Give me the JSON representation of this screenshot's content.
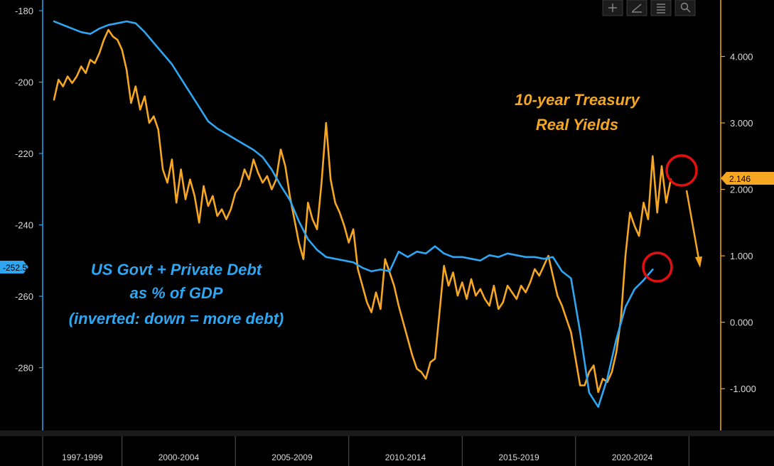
{
  "chart_data": {
    "type": "line",
    "title": "",
    "xlabel": "",
    "ylabel": "",
    "x_tick_labels": [
      "1997-1999",
      "2000-2004",
      "2005-2009",
      "2010-2014",
      "2015-2019",
      "2020-2024"
    ],
    "left_axis": {
      "ticks": [
        "-180",
        "-200",
        "-220",
        "-240",
        "-260",
        "-280"
      ],
      "ylim": [
        -298,
        -177
      ],
      "inverted": true
    },
    "right_axis": {
      "ticks": [
        "4.000",
        "3.000",
        "2.000",
        "1.000",
        "0.000",
        "-1.000"
      ],
      "ylim": [
        -1.65,
        4.85
      ]
    },
    "grid": false,
    "series": [
      {
        "name": "US Govt + Private Debt as % of GDP",
        "axis": "left",
        "color": "#2ea6f2",
        "last_value_label": "-252.5",
        "x": [
          1997.0,
          1997.4,
          1997.8,
          1998.2,
          1998.6,
          1999.0,
          1999.4,
          1999.8,
          2000.2,
          2000.6,
          2001.0,
          2001.4,
          2001.8,
          2002.2,
          2002.6,
          2003.0,
          2003.4,
          2003.8,
          2004.2,
          2004.6,
          2005.0,
          2005.4,
          2005.8,
          2006.2,
          2006.6,
          2007.0,
          2007.4,
          2007.8,
          2008.2,
          2008.6,
          2009.0,
          2009.4,
          2009.8,
          2010.2,
          2010.6,
          2011.0,
          2011.4,
          2011.8,
          2012.2,
          2012.6,
          2013.0,
          2013.4,
          2013.8,
          2014.2,
          2014.6,
          2015.0,
          2015.4,
          2015.8,
          2016.2,
          2016.6,
          2017.0,
          2017.4,
          2017.8,
          2018.2,
          2018.6,
          2019.0,
          2019.4,
          2019.8,
          2020.2,
          2020.6,
          2021.0,
          2021.4,
          2021.8,
          2022.2,
          2022.6,
          2023.0,
          2023.4
        ],
        "values": [
          -183,
          -184,
          -185,
          -186,
          -186.5,
          -185,
          -184,
          -183.5,
          -183,
          -183.5,
          -186,
          -189,
          -192,
          -195,
          -199,
          -203,
          -207,
          -211,
          -213,
          -214.5,
          -216,
          -217.5,
          -219,
          -221,
          -224.5,
          -229,
          -233,
          -239,
          -244,
          -247,
          -249,
          -249.5,
          -250,
          -250.5,
          -252,
          -253,
          -252.5,
          -253,
          -247.5,
          -249,
          -247.5,
          -248,
          -246,
          -248,
          -249,
          -249,
          -249.5,
          -250,
          -248.5,
          -249,
          -248,
          -248.5,
          -249,
          -249,
          -249.5,
          -249,
          -253,
          -255,
          -270,
          -287,
          -291,
          -283,
          -272,
          -263,
          -258,
          -255.5,
          -252.5
        ]
      },
      {
        "name": "10-year Treasury Real Yields",
        "axis": "right",
        "color": "#f5a623",
        "last_value_label": "2.146",
        "x": [
          1997.0,
          1997.2,
          1997.4,
          1997.6,
          1997.8,
          1998.0,
          1998.2,
          1998.4,
          1998.6,
          1998.8,
          1999.0,
          1999.2,
          1999.4,
          1999.6,
          1999.8,
          2000.0,
          2000.2,
          2000.4,
          2000.6,
          2000.8,
          2001.0,
          2001.2,
          2001.4,
          2001.6,
          2001.8,
          2002.0,
          2002.2,
          2002.4,
          2002.6,
          2002.8,
          2003.0,
          2003.2,
          2003.4,
          2003.6,
          2003.8,
          2004.0,
          2004.2,
          2004.4,
          2004.6,
          2004.8,
          2005.0,
          2005.2,
          2005.4,
          2005.6,
          2005.8,
          2006.0,
          2006.2,
          2006.4,
          2006.6,
          2006.8,
          2007.0,
          2007.2,
          2007.4,
          2007.6,
          2007.8,
          2008.0,
          2008.2,
          2008.4,
          2008.6,
          2008.8,
          2009.0,
          2009.2,
          2009.4,
          2009.6,
          2009.8,
          2010.0,
          2010.2,
          2010.4,
          2010.6,
          2010.8,
          2011.0,
          2011.2,
          2011.4,
          2011.6,
          2011.8,
          2012.0,
          2012.2,
          2012.4,
          2012.6,
          2012.8,
          2013.0,
          2013.2,
          2013.4,
          2013.6,
          2013.8,
          2014.0,
          2014.2,
          2014.4,
          2014.6,
          2014.8,
          2015.0,
          2015.2,
          2015.4,
          2015.6,
          2015.8,
          2016.0,
          2016.2,
          2016.4,
          2016.6,
          2016.8,
          2017.0,
          2017.2,
          2017.4,
          2017.6,
          2017.8,
          2018.0,
          2018.2,
          2018.4,
          2018.6,
          2018.8,
          2019.0,
          2019.2,
          2019.4,
          2019.6,
          2019.8,
          2020.0,
          2020.2,
          2020.4,
          2020.6,
          2020.8,
          2021.0,
          2021.2,
          2021.4,
          2021.6,
          2021.8,
          2022.0,
          2022.2,
          2022.4,
          2022.6,
          2022.8,
          2023.0,
          2023.2,
          2023.4,
          2023.6,
          2023.8,
          2024.0,
          2024.2
        ],
        "values": [
          3.35,
          3.65,
          3.55,
          3.7,
          3.6,
          3.7,
          3.85,
          3.75,
          3.95,
          3.9,
          4.05,
          4.25,
          4.4,
          4.3,
          4.25,
          4.1,
          3.8,
          3.3,
          3.55,
          3.2,
          3.4,
          3.0,
          3.1,
          2.9,
          2.3,
          2.1,
          2.45,
          1.8,
          2.3,
          1.85,
          2.15,
          1.9,
          1.5,
          2.05,
          1.75,
          1.9,
          1.6,
          1.7,
          1.55,
          1.7,
          1.95,
          2.05,
          2.3,
          2.15,
          2.45,
          2.25,
          2.1,
          2.2,
          2.0,
          2.15,
          2.6,
          2.35,
          1.9,
          1.55,
          1.2,
          0.95,
          1.8,
          1.55,
          1.4,
          2.1,
          3.0,
          2.15,
          1.8,
          1.65,
          1.45,
          1.2,
          1.4,
          0.8,
          0.55,
          0.3,
          0.15,
          0.45,
          0.2,
          0.95,
          0.75,
          0.55,
          0.25,
          0.0,
          -0.25,
          -0.5,
          -0.7,
          -0.75,
          -0.85,
          -0.6,
          -0.55,
          0.15,
          0.85,
          0.55,
          0.75,
          0.4,
          0.6,
          0.35,
          0.65,
          0.4,
          0.5,
          0.35,
          0.25,
          0.55,
          0.2,
          0.3,
          0.55,
          0.45,
          0.35,
          0.55,
          0.45,
          0.6,
          0.8,
          0.7,
          0.85,
          1.0,
          0.7,
          0.4,
          0.25,
          0.05,
          -0.15,
          -0.55,
          -0.95,
          -0.95,
          -0.75,
          -0.65,
          -1.05,
          -0.85,
          -0.9,
          -0.75,
          -0.45,
          0.05,
          1.0,
          1.65,
          1.45,
          1.3,
          1.8,
          1.55,
          2.5,
          1.65,
          2.35,
          1.8,
          2.15
        ]
      }
    ],
    "annotations": {
      "blue_lines": [
        "US Govt + Private Debt",
        "as % of GDP",
        "(inverted: down = more debt)"
      ],
      "orange_lines": [
        "10-year Treasury",
        "Real Yields"
      ]
    }
  }
}
